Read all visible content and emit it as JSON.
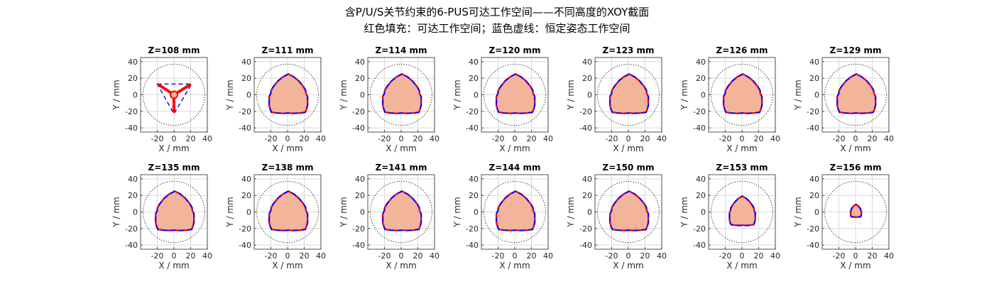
{
  "figure": {
    "title_line1": "含P/U/S关节约束的6-PUS可达工作空间——不同高度的XOY截面",
    "title_line2": "红色填充：可达工作空间；蓝色虚线：恒定姿态工作空间"
  },
  "chart_data": {
    "type": "area",
    "layout": "2x7 grid of XOY section subplots",
    "xlabel": "X / mm",
    "ylabel": "Y / mm",
    "xlim": [
      -40,
      40
    ],
    "ylim": [
      -45,
      45
    ],
    "xticks": [
      -20,
      0,
      20,
      40
    ],
    "yticks": [
      -40,
      -20,
      0,
      20,
      40
    ],
    "grid": true,
    "reference_circle_radius": 37,
    "colors": {
      "reachable_fill": "#f2b49a",
      "reachable_boundary": "#ff0000",
      "constant_orientation_boundary": "#0000ff",
      "reference_circle": "#000000",
      "grid": "#d9d9d9"
    },
    "subplots": [
      {
        "title": "Z=108 mm",
        "shape": "tripod",
        "tri_vertices": [
          [
            -20,
            13
          ],
          [
            21,
            13
          ],
          [
            0,
            -23
          ]
        ],
        "tripod_tips": [
          [
            -18,
            12
          ],
          [
            19,
            12
          ],
          [
            0,
            -20
          ]
        ]
      },
      {
        "title": "Z=111 mm",
        "shape": "region",
        "extent": {
          "x": [
            -22,
            24
          ],
          "y": [
            -22,
            25
          ]
        }
      },
      {
        "title": "Z=114 mm",
        "shape": "region",
        "extent": {
          "x": [
            -22,
            24
          ],
          "y": [
            -22,
            25
          ]
        }
      },
      {
        "title": "Z=120 mm",
        "shape": "region",
        "extent": {
          "x": [
            -22,
            24
          ],
          "y": [
            -22,
            25
          ]
        }
      },
      {
        "title": "Z=123 mm",
        "shape": "region",
        "extent": {
          "x": [
            -22,
            24
          ],
          "y": [
            -22,
            25
          ]
        }
      },
      {
        "title": "Z=126 mm",
        "shape": "region",
        "extent": {
          "x": [
            -22,
            24
          ],
          "y": [
            -22,
            25
          ]
        }
      },
      {
        "title": "Z=129 mm",
        "shape": "region",
        "extent": {
          "x": [
            -22,
            24
          ],
          "y": [
            -22,
            25
          ]
        }
      },
      {
        "title": "Z=135 mm",
        "shape": "region",
        "extent": {
          "x": [
            -22,
            24
          ],
          "y": [
            -22,
            25
          ]
        }
      },
      {
        "title": "Z=138 mm",
        "shape": "region",
        "extent": {
          "x": [
            -22,
            24
          ],
          "y": [
            -22,
            25
          ]
        }
      },
      {
        "title": "Z=141 mm",
        "shape": "region",
        "extent": {
          "x": [
            -22,
            24
          ],
          "y": [
            -22,
            25
          ]
        }
      },
      {
        "title": "Z=144 mm",
        "shape": "region",
        "extent": {
          "x": [
            -22,
            24
          ],
          "y": [
            -22,
            25
          ]
        }
      },
      {
        "title": "Z=150 mm",
        "shape": "region",
        "extent": {
          "x": [
            -22,
            24
          ],
          "y": [
            -22,
            25
          ]
        }
      },
      {
        "title": "Z=153 mm",
        "shape": "region",
        "extent": {
          "x": [
            -15,
            16
          ],
          "y": [
            -16,
            19
          ]
        }
      },
      {
        "title": "Z=156 mm",
        "shape": "region",
        "extent": {
          "x": [
            -6,
            7
          ],
          "y": [
            -6,
            9
          ]
        }
      }
    ]
  }
}
